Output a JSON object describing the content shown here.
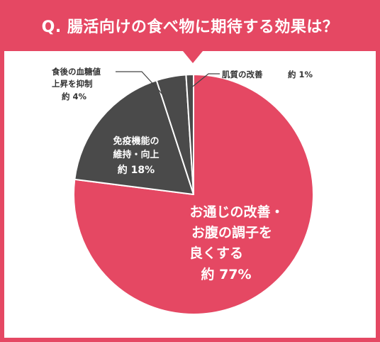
{
  "header": {
    "title": "Q. 腸活向けの食べ物に期待する効果は？"
  },
  "colors": {
    "accent": "#e54863",
    "dark_slice": "#4a4a4a",
    "separator": "#ffffff"
  },
  "chart_data": {
    "type": "pie",
    "title": "Q. 腸活向けの食べ物に期待する効果は？",
    "legend": "none",
    "slices": [
      {
        "label_lines": [
          "お通じの改善・",
          "お腹の調子を",
          "良くする"
        ],
        "value_text": "約 77%",
        "value": 77,
        "color": "#e54863"
      },
      {
        "label_lines": [
          "免疫機能の",
          "維持・向上"
        ],
        "value_text": "約 18%",
        "value": 18,
        "color": "#4a4a4a"
      },
      {
        "label_lines": [
          "食後の血糖値",
          "上昇を抑制"
        ],
        "value_text": "約 4%",
        "value": 4,
        "color": "#4a4a4a"
      },
      {
        "label_lines": [
          "肌質の改善"
        ],
        "value_text": "約 1%",
        "value": 1,
        "color": "#4a4a4a"
      }
    ]
  }
}
